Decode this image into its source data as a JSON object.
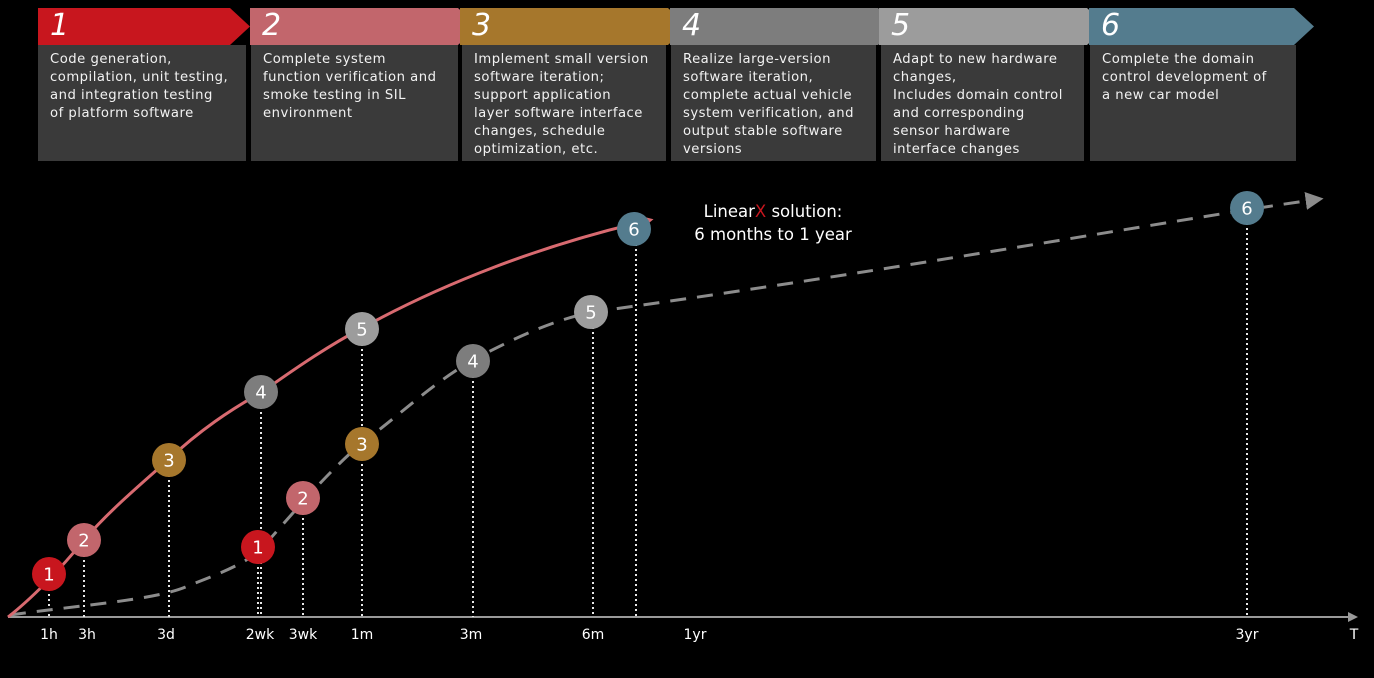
{
  "colors": {
    "step1": "#c8161e",
    "step2": "#c2666c",
    "step3": "#a6772c",
    "step4": "#7d7d7d",
    "step5": "#9c9c9c",
    "step6": "#547c8e",
    "card_bg": "#3a3a3a",
    "fast_curve": "#d86a70",
    "slow_curve": "#8c8c8c"
  },
  "steps": [
    {
      "num": "1",
      "desc": "Code generation,\ncompilation, unit testing,\nand integration testing\nof platform software"
    },
    {
      "num": "2",
      "desc": "Complete system\nfunction verification and\nsmoke testing in SIL\nenvironment"
    },
    {
      "num": "3",
      "desc": "Implement small version\nsoftware iteration;\nsupport application\nlayer software interface\nchanges, schedule\noptimization, etc."
    },
    {
      "num": "4",
      "desc": "Realize large-version\nsoftware iteration,\ncomplete actual vehicle\nsystem verification, and\noutput stable software\nversions"
    },
    {
      "num": "5",
      "desc": "Adapt to new hardware\nchanges,\nIncludes domain control\nand corresponding\nsensor hardware\ninterface changes"
    },
    {
      "num": "6",
      "desc": "Complete the domain\ncontrol development of\na new car model"
    }
  ],
  "solution": {
    "brand_prefix": "Linear",
    "brand_highlight": "X",
    "brand_suffix": " solution:",
    "line2": "6 months to 1 year"
  },
  "axis": {
    "end_label": "T",
    "ticks": [
      "1h",
      "3h",
      "3d",
      "2wk",
      "3wk",
      "1m",
      "3m",
      "6m",
      "1yr",
      "3yr"
    ]
  },
  "fast_milestones": [
    {
      "label": "1",
      "tick": "1h"
    },
    {
      "label": "2",
      "tick": "3h"
    },
    {
      "label": "3",
      "tick": "3d"
    },
    {
      "label": "4",
      "tick": "2wk"
    },
    {
      "label": "5",
      "tick": "1m"
    },
    {
      "label": "6",
      "tick": "6m"
    }
  ],
  "slow_milestones": [
    {
      "label": "1",
      "tick": "2wk"
    },
    {
      "label": "2",
      "tick": "3wk"
    },
    {
      "label": "3",
      "tick": "1m"
    },
    {
      "label": "4",
      "tick": "3m"
    },
    {
      "label": "5",
      "tick": "6m"
    },
    {
      "label": "6",
      "tick": "3yr"
    }
  ]
}
